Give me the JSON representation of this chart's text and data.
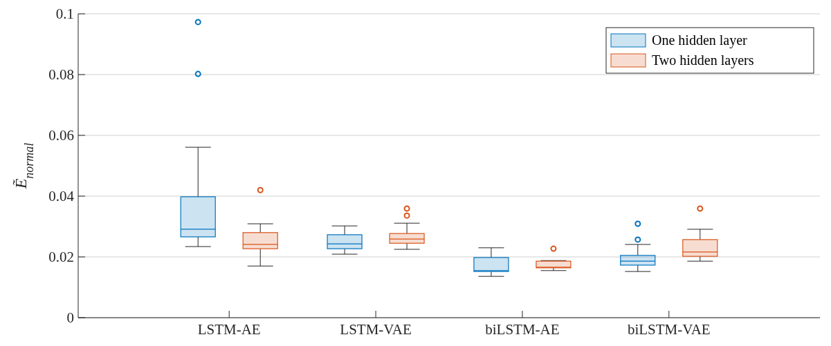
{
  "chart_data": {
    "type": "box",
    "ylabel": "Ẽ$_{normal}$",
    "categories": [
      "LSTM-AE",
      "LSTM-VAE",
      "biLSTM-AE",
      "biLSTM-VAE"
    ],
    "ylim": [
      0,
      0.1
    ],
    "yticks": [
      0,
      0.02,
      0.04,
      0.06,
      0.08,
      0.1
    ],
    "grid": "y",
    "legend": "top right",
    "marker": "circle",
    "series": [
      {
        "name": "One hidden layer",
        "color": "#0072bd",
        "boxes": [
          {
            "low": 0.0234,
            "q1": 0.0266,
            "median": 0.0291,
            "q3": 0.0398,
            "high": 0.0561,
            "outliers": [
              0.0973,
              0.0802
            ]
          },
          {
            "low": 0.0209,
            "q1": 0.0227,
            "median": 0.0243,
            "q3": 0.0273,
            "high": 0.0302
          },
          {
            "low": 0.0136,
            "q1": 0.0152,
            "median": 0.0155,
            "q3": 0.0198,
            "high": 0.023
          },
          {
            "low": 0.0152,
            "q1": 0.0173,
            "median": 0.0186,
            "q3": 0.0205,
            "high": 0.0241,
            "outliers": [
              0.0309,
              0.0257
            ]
          }
        ]
      },
      {
        "name": "Two hidden layers",
        "color": "#d95319",
        "boxes": [
          {
            "low": 0.017,
            "q1": 0.0227,
            "median": 0.0241,
            "q3": 0.028,
            "high": 0.0309,
            "outliers": [
              0.042
            ]
          },
          {
            "low": 0.0225,
            "q1": 0.0245,
            "median": 0.0259,
            "q3": 0.0277,
            "high": 0.0311,
            "outliers": [
              0.0359,
              0.0336
            ]
          },
          {
            "low": 0.0155,
            "q1": 0.0164,
            "median": 0.0166,
            "q3": 0.0186,
            "high": 0.0188,
            "outliers": [
              0.0227
            ]
          },
          {
            "low": 0.0186,
            "q1": 0.0202,
            "median": 0.0216,
            "q3": 0.0257,
            "high": 0.0291,
            "outliers": [
              0.0359
            ]
          }
        ]
      }
    ]
  }
}
